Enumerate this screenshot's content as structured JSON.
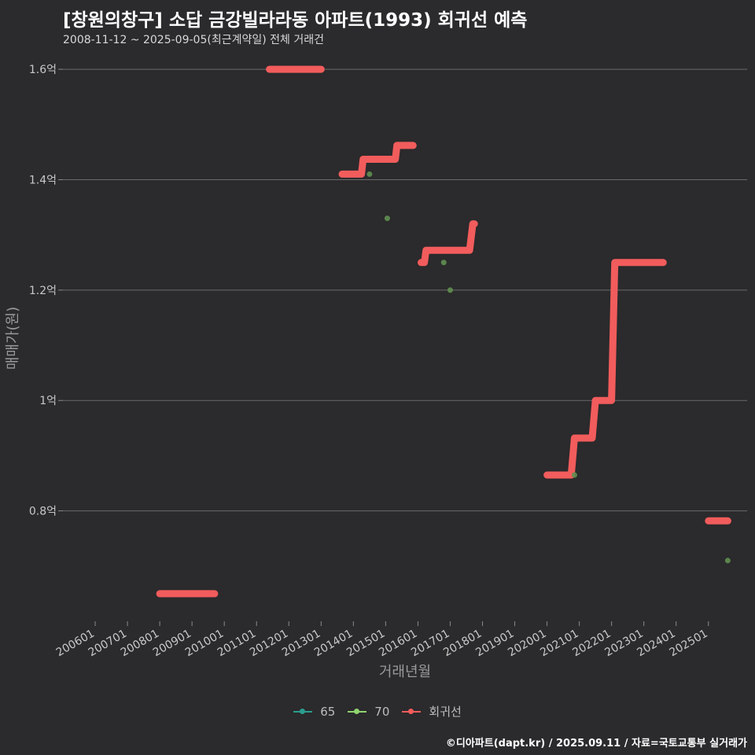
{
  "chart_data": {
    "type": "line",
    "title": "[창원의창구] 소답 금강빌라라동 아파트(1993) 회귀선 예측",
    "subtitle": "2008-11-12 ~ 2025-09-05(최근계약일) 전체 거래건",
    "xlabel": "거래년월",
    "ylabel": "매매가(원)",
    "x_ticks": [
      "200601",
      "200701",
      "200801",
      "200901",
      "201001",
      "201101",
      "201201",
      "201301",
      "201401",
      "201501",
      "201601",
      "201701",
      "201801",
      "201901",
      "202001",
      "202101",
      "202201",
      "202301",
      "202401",
      "202501"
    ],
    "y_ticks": [
      {
        "value": 0.8,
        "label": "0.8억"
      },
      {
        "value": 1.0,
        "label": "1억"
      },
      {
        "value": 1.2,
        "label": "1.2억"
      },
      {
        "value": 1.4,
        "label": "1.4억"
      },
      {
        "value": 1.6,
        "label": "1.6억"
      }
    ],
    "ylim": [
      0.6,
      1.64
    ],
    "xlim": [
      2005.0,
      2026.2
    ],
    "grid": "horizontal",
    "legend_position": "bottom",
    "series": [
      {
        "name": "65",
        "color": "#2a9d8f",
        "type": "scatter",
        "points": []
      },
      {
        "name": "70",
        "color": "#5f8f50",
        "type": "scatter",
        "points": [
          [
            2014.5,
            1.41
          ],
          [
            2015.05,
            1.33
          ],
          [
            2016.8,
            1.25
          ],
          [
            2017.0,
            1.2
          ],
          [
            2020.85,
            0.865
          ],
          [
            2025.6,
            0.71
          ]
        ]
      },
      {
        "name": "회귀선",
        "color": "#f25c5c",
        "type": "line",
        "segments": [
          [
            [
              2008.0,
              0.65
            ],
            [
              2009.7,
              0.65
            ]
          ],
          [
            [
              2011.4,
              1.6
            ],
            [
              2013.0,
              1.6
            ]
          ],
          [
            [
              2013.65,
              1.41
            ],
            [
              2014.25,
              1.41
            ],
            [
              2014.3,
              1.437
            ],
            [
              2015.3,
              1.437
            ],
            [
              2015.35,
              1.462
            ],
            [
              2015.85,
              1.462
            ]
          ],
          [
            [
              2016.1,
              1.25
            ],
            [
              2016.2,
              1.25
            ],
            [
              2016.25,
              1.272
            ],
            [
              2017.6,
              1.272
            ],
            [
              2017.7,
              1.32
            ],
            [
              2017.75,
              1.32
            ]
          ],
          [
            [
              2020.0,
              0.865
            ],
            [
              2020.75,
              0.865
            ],
            [
              2020.85,
              0.932
            ],
            [
              2021.4,
              0.932
            ],
            [
              2021.5,
              1.0
            ],
            [
              2022.0,
              1.0
            ],
            [
              2022.1,
              1.25
            ],
            [
              2023.6,
              1.25
            ]
          ],
          [
            [
              2025.0,
              0.782
            ],
            [
              2025.6,
              0.782
            ]
          ]
        ]
      }
    ]
  },
  "legend": {
    "items": [
      {
        "label": "65",
        "color": "#2a9d8f"
      },
      {
        "label": "70",
        "color": "#8fd46e"
      },
      {
        "label": "회귀선",
        "color": "#f25c5c"
      }
    ]
  },
  "caption": "©디아파트(dapt.kr) / 2025.09.11 / 자료=국토교통부 실거래가"
}
